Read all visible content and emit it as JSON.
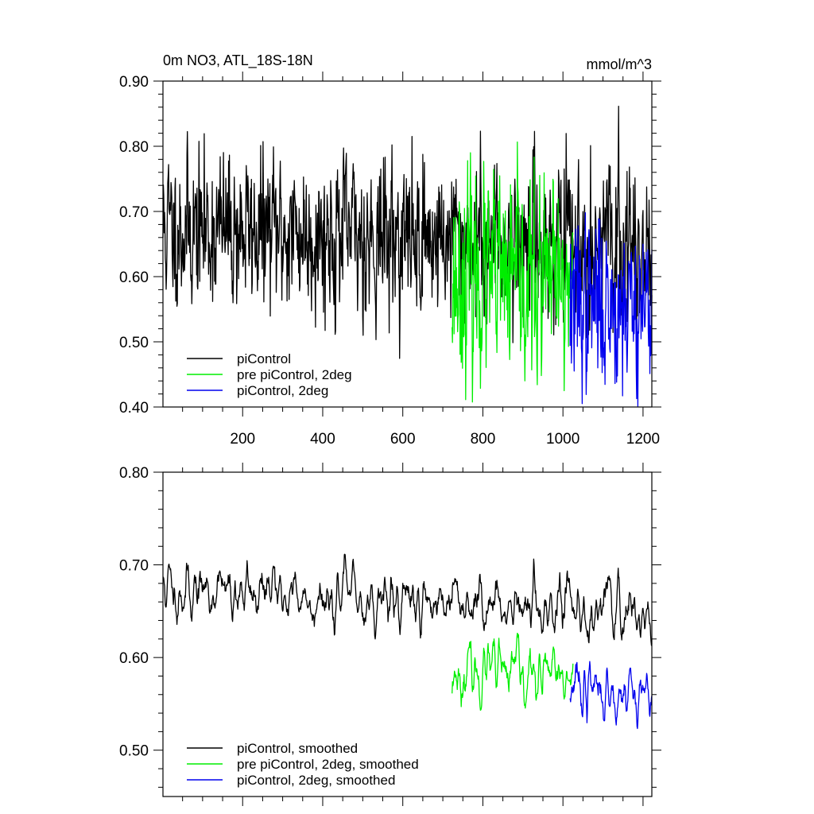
{
  "chart_data": [
    {
      "type": "line",
      "title_left": "0m NO3, ATL_18S-18N",
      "title_right": "mmol/m^3",
      "xlim": [
        1,
        1222
      ],
      "ylim": [
        0.4,
        0.9
      ],
      "grid": false,
      "x_ticks": [
        200,
        400,
        600,
        800,
        1000,
        1200
      ],
      "x_tick_labels": [
        "200",
        "400",
        "600",
        "800",
        "1000",
        "1200"
      ],
      "y_ticks": [
        0.4,
        0.5,
        0.6,
        0.7,
        0.8,
        0.9
      ],
      "y_tick_labels": [
        "0.40",
        "0.50",
        "0.60",
        "0.70",
        "0.80",
        "0.90"
      ],
      "legend_position": "bottom-left",
      "series": [
        {
          "name": "piControl",
          "color": "#000000",
          "x_range": [
            1,
            1222
          ],
          "mean_start": 0.675,
          "mean_end": 0.645,
          "spread": 0.055,
          "seed": 11
        },
        {
          "name": "pre piControl, 2deg",
          "color": "#00ee00",
          "x_range": [
            723,
            1025
          ],
          "mean_start": 0.6,
          "mean_end": 0.58,
          "spread": 0.07,
          "seed": 23
        },
        {
          "name": "piControl, 2deg",
          "color": "#0000ee",
          "x_range": [
            1018,
            1222
          ],
          "mean_start": 0.56,
          "mean_end": 0.56,
          "spread": 0.06,
          "seed": 37
        }
      ]
    },
    {
      "type": "line",
      "xlim": [
        1,
        1222
      ],
      "ylim": [
        0.45,
        0.8
      ],
      "grid": false,
      "y_ticks": [
        0.5,
        0.6,
        0.7,
        0.8
      ],
      "y_tick_labels": [
        "0.50",
        "0.60",
        "0.70",
        "0.80"
      ],
      "legend_position": "bottom-left",
      "series": [
        {
          "name": "piControl, smoothed",
          "color": "#000000",
          "x_range": [
            1,
            1222
          ],
          "mean_start": 0.675,
          "mean_end": 0.65,
          "spread": 0.028,
          "seed": 11
        },
        {
          "name": "pre piControl, 2deg, smoothed",
          "color": "#00ee00",
          "x_range": [
            723,
            1025
          ],
          "mean_start": 0.585,
          "mean_end": 0.575,
          "spread": 0.03,
          "seed": 23
        },
        {
          "name": "piControl, 2deg, smoothed",
          "color": "#0000ee",
          "x_range": [
            1018,
            1222
          ],
          "mean_start": 0.565,
          "mean_end": 0.565,
          "spread": 0.03,
          "seed": 37
        }
      ]
    }
  ]
}
